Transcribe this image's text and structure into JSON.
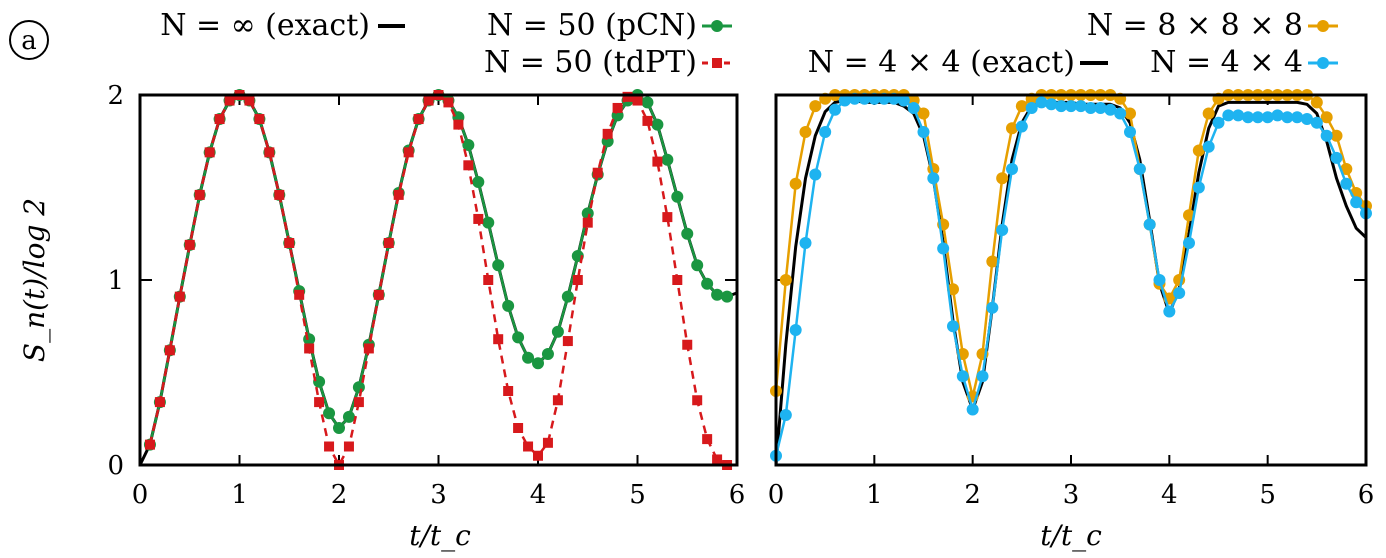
{
  "panel_label": "a",
  "colors": {
    "exact": "#000000",
    "pcn": "#1a9641",
    "tdpt": "#d7191c",
    "orange": "#e69f00",
    "blue": "#1eb3f0"
  },
  "chart_data": [
    {
      "type": "line",
      "title": "",
      "xlabel": "t/t_c",
      "ylabel": "S_n(t)/log 2",
      "xlim": [
        0,
        6
      ],
      "ylim": [
        0,
        2
      ],
      "xticks": [
        "0",
        "1",
        "2",
        "3",
        "4",
        "5",
        "6"
      ],
      "yticks": [
        "0",
        "1",
        "2"
      ],
      "legend_position": "top",
      "series": [
        {
          "name": "N = ∞ (exact)",
          "style": "line",
          "x": [
            0,
            0.1,
            0.2,
            0.3,
            0.4,
            0.5,
            0.6,
            0.7,
            0.8,
            0.9,
            1.0,
            1.1,
            1.2,
            1.3,
            1.4,
            1.5,
            1.6,
            1.7,
            1.8,
            1.9,
            2.0,
            2.1,
            2.2,
            2.3,
            2.4,
            2.5,
            2.6,
            2.7,
            2.8,
            2.9,
            3.0,
            3.1,
            3.2,
            3.3,
            3.4,
            3.5,
            3.6,
            3.7,
            3.8,
            3.9,
            4.0,
            4.1,
            4.2,
            4.3,
            4.4,
            4.5,
            4.6,
            4.7,
            4.8,
            4.9,
            5.0,
            5.1,
            5.2,
            5.3,
            5.4,
            5.5,
            5.6,
            5.7,
            5.8,
            5.9,
            6.0
          ],
          "y": [
            0,
            0.11,
            0.34,
            0.62,
            0.91,
            1.19,
            1.46,
            1.69,
            1.87,
            1.97,
            2.0,
            1.97,
            1.87,
            1.69,
            1.46,
            1.2,
            0.94,
            0.68,
            0.45,
            0.28,
            0.2,
            0.26,
            0.42,
            0.65,
            0.92,
            1.2,
            1.47,
            1.7,
            1.87,
            1.97,
            2.0,
            1.97,
            1.88,
            1.73,
            1.53,
            1.31,
            1.08,
            0.86,
            0.69,
            0.58,
            0.55,
            0.6,
            0.72,
            0.91,
            1.13,
            1.36,
            1.57,
            1.75,
            1.89,
            1.97,
            2.0,
            1.96,
            1.84,
            1.65,
            1.45,
            1.25,
            1.08,
            0.98,
            0.92,
            0.91,
            0.93
          ]
        },
        {
          "name": "N = 50 (pCN)",
          "style": "line+circle",
          "x": [
            0.1,
            0.2,
            0.3,
            0.4,
            0.5,
            0.6,
            0.7,
            0.8,
            0.9,
            1.0,
            1.1,
            1.2,
            1.3,
            1.4,
            1.5,
            1.6,
            1.7,
            1.8,
            1.9,
            2.0,
            2.1,
            2.2,
            2.3,
            2.4,
            2.5,
            2.6,
            2.7,
            2.8,
            2.9,
            3.0,
            3.1,
            3.2,
            3.3,
            3.4,
            3.5,
            3.6,
            3.7,
            3.8,
            3.9,
            4.0,
            4.1,
            4.2,
            4.3,
            4.4,
            4.5,
            4.6,
            4.7,
            4.8,
            4.9,
            5.0,
            5.1,
            5.2,
            5.3,
            5.4,
            5.5,
            5.6,
            5.7,
            5.8,
            5.9
          ],
          "y": [
            0.11,
            0.34,
            0.62,
            0.91,
            1.19,
            1.46,
            1.69,
            1.87,
            1.97,
            2.0,
            1.97,
            1.87,
            1.69,
            1.46,
            1.2,
            0.94,
            0.68,
            0.45,
            0.28,
            0.2,
            0.26,
            0.42,
            0.65,
            0.92,
            1.2,
            1.47,
            1.7,
            1.87,
            1.97,
            2.0,
            1.97,
            1.88,
            1.73,
            1.53,
            1.31,
            1.08,
            0.86,
            0.69,
            0.58,
            0.55,
            0.6,
            0.72,
            0.91,
            1.13,
            1.36,
            1.57,
            1.75,
            1.89,
            1.97,
            2.0,
            1.96,
            1.84,
            1.65,
            1.45,
            1.25,
            1.08,
            0.98,
            0.92,
            0.91
          ]
        },
        {
          "name": "N = 50 (tdPT)",
          "style": "dashed+square",
          "x": [
            0.1,
            0.2,
            0.3,
            0.4,
            0.5,
            0.6,
            0.7,
            0.8,
            0.9,
            1.0,
            1.1,
            1.2,
            1.3,
            1.4,
            1.5,
            1.6,
            1.7,
            1.8,
            1.9,
            2.0,
            2.1,
            2.2,
            2.3,
            2.4,
            2.5,
            2.6,
            2.7,
            2.8,
            2.9,
            3.0,
            3.1,
            3.2,
            3.3,
            3.4,
            3.5,
            3.6,
            3.7,
            3.8,
            3.9,
            4.0,
            4.1,
            4.2,
            4.3,
            4.4,
            4.5,
            4.6,
            4.7,
            4.8,
            4.9,
            5.0,
            5.1,
            5.2,
            5.3,
            5.4,
            5.5,
            5.6,
            5.7,
            5.8,
            5.9
          ],
          "y": [
            0.11,
            0.34,
            0.62,
            0.91,
            1.19,
            1.46,
            1.69,
            1.87,
            1.97,
            2.0,
            1.97,
            1.87,
            1.69,
            1.46,
            1.2,
            0.92,
            0.63,
            0.34,
            0.1,
            0.0,
            0.1,
            0.34,
            0.63,
            0.92,
            1.2,
            1.46,
            1.69,
            1.87,
            1.97,
            2.0,
            1.96,
            1.84,
            1.62,
            1.33,
            1.0,
            0.68,
            0.4,
            0.2,
            0.1,
            0.05,
            0.12,
            0.35,
            0.67,
            1.0,
            1.31,
            1.58,
            1.79,
            1.93,
            1.99,
            1.97,
            1.86,
            1.64,
            1.34,
            1.0,
            0.65,
            0.35,
            0.14,
            0.03,
            0.0
          ]
        }
      ]
    },
    {
      "type": "line",
      "title": "",
      "xlabel": "t/t_c",
      "ylabel": "",
      "xlim": [
        0,
        6
      ],
      "ylim": [
        0,
        2
      ],
      "xticks": [
        "0",
        "1",
        "2",
        "3",
        "4",
        "5",
        "6"
      ],
      "yticks": [],
      "legend_position": "top",
      "series": [
        {
          "name": "N = 4 × 4 (exact)",
          "style": "line",
          "x": [
            0,
            0.1,
            0.2,
            0.3,
            0.4,
            0.5,
            0.6,
            0.7,
            0.8,
            0.9,
            1.0,
            1.1,
            1.2,
            1.3,
            1.4,
            1.5,
            1.6,
            1.7,
            1.8,
            1.9,
            2.0,
            2.1,
            2.2,
            2.3,
            2.4,
            2.5,
            2.6,
            2.7,
            2.8,
            2.9,
            3.0,
            3.1,
            3.2,
            3.3,
            3.4,
            3.5,
            3.6,
            3.7,
            3.8,
            3.9,
            4.0,
            4.1,
            4.2,
            4.3,
            4.4,
            4.5,
            4.6,
            4.7,
            4.8,
            4.9,
            5.0,
            5.1,
            5.2,
            5.3,
            5.4,
            5.5,
            5.6,
            5.7,
            5.8,
            5.9,
            6.0
          ],
          "y": [
            0,
            0.65,
            1.18,
            1.55,
            1.78,
            1.91,
            1.96,
            1.97,
            1.97,
            1.96,
            1.96,
            1.96,
            1.96,
            1.94,
            1.9,
            1.78,
            1.55,
            1.2,
            0.78,
            0.45,
            0.3,
            0.45,
            0.85,
            1.3,
            1.65,
            1.85,
            1.94,
            1.96,
            1.96,
            1.96,
            1.96,
            1.95,
            1.95,
            1.95,
            1.95,
            1.93,
            1.85,
            1.65,
            1.32,
            0.98,
            0.82,
            0.95,
            1.25,
            1.58,
            1.82,
            1.94,
            1.96,
            1.96,
            1.96,
            1.96,
            1.96,
            1.96,
            1.96,
            1.96,
            1.95,
            1.9,
            1.75,
            1.55,
            1.4,
            1.28,
            1.23
          ]
        },
        {
          "name": "N = 8 × 8 × 8",
          "style": "line+circle",
          "x": [
            0,
            0.1,
            0.2,
            0.3,
            0.4,
            0.5,
            0.6,
            0.7,
            0.8,
            0.9,
            1.0,
            1.1,
            1.2,
            1.3,
            1.4,
            1.5,
            1.6,
            1.7,
            1.8,
            1.9,
            2.0,
            2.1,
            2.2,
            2.3,
            2.4,
            2.5,
            2.6,
            2.7,
            2.8,
            2.9,
            3.0,
            3.1,
            3.2,
            3.3,
            3.4,
            3.5,
            3.6,
            3.7,
            3.8,
            3.9,
            4.0,
            4.1,
            4.2,
            4.3,
            4.4,
            4.5,
            4.6,
            4.7,
            4.8,
            4.9,
            5.0,
            5.1,
            5.2,
            5.3,
            5.4,
            5.5,
            5.6,
            5.7,
            5.8,
            5.9,
            6.0
          ],
          "y": [
            0.4,
            1.0,
            1.52,
            1.8,
            1.94,
            1.98,
            2.0,
            2.0,
            2.0,
            2.0,
            2.0,
            2.0,
            2.0,
            2.0,
            1.97,
            1.9,
            1.6,
            1.3,
            0.95,
            0.6,
            0.37,
            0.6,
            1.1,
            1.55,
            1.82,
            1.94,
            1.98,
            2.0,
            2.0,
            2.0,
            2.0,
            2.0,
            2.0,
            2.0,
            2.0,
            1.98,
            1.9,
            1.6,
            1.3,
            0.98,
            0.9,
            1.0,
            1.35,
            1.7,
            1.9,
            1.98,
            2.0,
            2.0,
            2.0,
            2.0,
            2.0,
            2.0,
            2.0,
            2.0,
            2.0,
            1.96,
            1.88,
            1.78,
            1.6,
            1.47,
            1.4
          ]
        },
        {
          "name": "N = 4 × 4",
          "style": "line+circle",
          "x": [
            0,
            0.1,
            0.2,
            0.3,
            0.4,
            0.5,
            0.6,
            0.7,
            0.8,
            0.9,
            1.0,
            1.1,
            1.2,
            1.3,
            1.4,
            1.5,
            1.6,
            1.7,
            1.8,
            1.9,
            2.0,
            2.1,
            2.2,
            2.3,
            2.4,
            2.5,
            2.6,
            2.7,
            2.8,
            2.9,
            3.0,
            3.1,
            3.2,
            3.3,
            3.4,
            3.5,
            3.6,
            3.7,
            3.8,
            3.9,
            4.0,
            4.1,
            4.2,
            4.3,
            4.4,
            4.5,
            4.6,
            4.7,
            4.8,
            4.9,
            5.0,
            5.1,
            5.2,
            5.3,
            5.4,
            5.5,
            5.6,
            5.7,
            5.8,
            5.9,
            6.0
          ],
          "y": [
            0.05,
            0.27,
            0.73,
            1.2,
            1.57,
            1.8,
            1.92,
            1.97,
            1.98,
            1.98,
            1.98,
            1.98,
            1.98,
            1.97,
            1.93,
            1.8,
            1.55,
            1.17,
            0.75,
            0.48,
            0.3,
            0.48,
            0.85,
            1.27,
            1.6,
            1.83,
            1.93,
            1.96,
            1.95,
            1.94,
            1.94,
            1.94,
            1.93,
            1.93,
            1.92,
            1.9,
            1.8,
            1.6,
            1.3,
            1.0,
            0.83,
            0.93,
            1.2,
            1.5,
            1.72,
            1.85,
            1.89,
            1.89,
            1.88,
            1.88,
            1.88,
            1.89,
            1.88,
            1.88,
            1.87,
            1.85,
            1.78,
            1.66,
            1.52,
            1.42,
            1.36
          ]
        }
      ]
    }
  ]
}
